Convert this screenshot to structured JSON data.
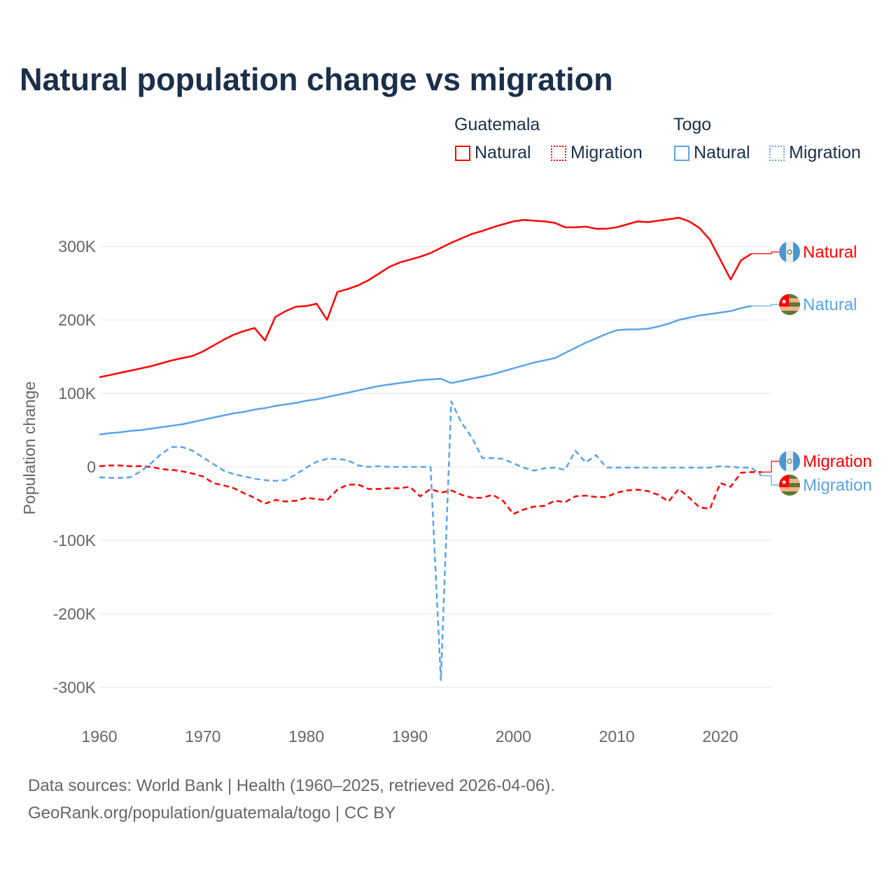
{
  "colors": {
    "guatemala": "#ff0000",
    "togo": "#5ba4ea",
    "title": "#1b2f4b"
  },
  "legend": {
    "groups": [
      {
        "name": "Guatemala",
        "items": [
          "Natural",
          "Migration"
        ]
      },
      {
        "name": "Togo",
        "items": [
          "Natural",
          "Migration"
        ]
      }
    ]
  },
  "footer": {
    "line1": "Data sources: World Bank | Health (1960–2025, retrieved 2026-04-06).",
    "line2": "GeoRank.org/population/guatemala/togo | CC BY"
  },
  "chart_data": {
    "type": "line",
    "title": "Natural population change vs migration",
    "xlabel": "",
    "ylabel": "Population change",
    "xlim": [
      1960,
      2025
    ],
    "ylim": [
      -330000,
      360000
    ],
    "xticks": [
      1960,
      1970,
      1980,
      1990,
      2000,
      2010,
      2020
    ],
    "yticks": [
      {
        "value": 300000,
        "label": "300K"
      },
      {
        "value": 200000,
        "label": "200K"
      },
      {
        "value": 100000,
        "label": "100K"
      },
      {
        "value": 0,
        "label": "0"
      },
      {
        "value": -100000,
        "label": "-100K"
      },
      {
        "value": -200000,
        "label": "-200K"
      },
      {
        "value": -300000,
        "label": "-300K"
      }
    ],
    "grid": true,
    "legend_position": "top-right",
    "series": [
      {
        "name": "Guatemala Natural",
        "country": "Guatemala",
        "label": "Natural",
        "color": "#ff0000",
        "dash": "solid",
        "start": 1960,
        "values_k": [
          122,
          125,
          128,
          131,
          134,
          137,
          141,
          145,
          148,
          151,
          157,
          165,
          173,
          180,
          185,
          189,
          172,
          204,
          212,
          218,
          219,
          222,
          200,
          238,
          242,
          247,
          254,
          263,
          272,
          278,
          282,
          286,
          291,
          298,
          305,
          311,
          317,
          321,
          326,
          330,
          334,
          336,
          335,
          334,
          332,
          326,
          326,
          327,
          324,
          324,
          326,
          330,
          334,
          333,
          335,
          337,
          339,
          334,
          325,
          309,
          282,
          255,
          281,
          290
        ]
      },
      {
        "name": "Guatemala Migration",
        "country": "Guatemala",
        "label": "Migration",
        "color": "#ff0000",
        "dash": "dashed",
        "start": 1960,
        "values_k": [
          1,
          2,
          2,
          1,
          1,
          0,
          -3,
          -4,
          -6,
          -9,
          -13,
          -22,
          -25,
          -29,
          -36,
          -42,
          -50,
          -45,
          -47,
          -46,
          -42,
          -44,
          -45,
          -31,
          -24,
          -24,
          -30,
          -30,
          -29,
          -29,
          -27,
          -40,
          -30,
          -35,
          -32,
          -38,
          -42,
          -42,
          -38,
          -46,
          -64,
          -58,
          -54,
          -53,
          -46,
          -48,
          -40,
          -39,
          -41,
          -41,
          -35,
          -32,
          -31,
          -33,
          -38,
          -47,
          -30,
          -42,
          -55,
          -57,
          -22,
          -27,
          -8,
          -7,
          -7
        ]
      },
      {
        "name": "Togo Natural",
        "country": "Togo",
        "label": "Natural",
        "color": "#5ba4ea",
        "dash": "solid",
        "start": 1960,
        "values_k": [
          44,
          46,
          47,
          49,
          50,
          52,
          54,
          56,
          58,
          61,
          64,
          67,
          70,
          73,
          75,
          78,
          80,
          83,
          85,
          87,
          90,
          92,
          95,
          98,
          101,
          104,
          107,
          110,
          112,
          114,
          116,
          118,
          119,
          120,
          114,
          117,
          120,
          123,
          126,
          130,
          134,
          138,
          142,
          145,
          148,
          155,
          162,
          169,
          175,
          181,
          186,
          187,
          187,
          188,
          191,
          195,
          200,
          203,
          206,
          208,
          210,
          212,
          216,
          219
        ]
      },
      {
        "name": "Togo Migration",
        "country": "Togo",
        "label": "Migration",
        "color": "#5ba4ea",
        "dash": "dashed",
        "start": 1960,
        "values_k": [
          -14,
          -15,
          -15,
          -14,
          -6,
          5,
          18,
          27,
          27,
          22,
          13,
          4,
          -5,
          -10,
          -13,
          -16,
          -18,
          -19,
          -18,
          -10,
          -1,
          7,
          11,
          11,
          9,
          2,
          0,
          1,
          0,
          0,
          0,
          0,
          0,
          -290,
          89,
          60,
          40,
          12,
          12,
          11,
          5,
          -1,
          -5,
          -2,
          -1,
          -4,
          22,
          6,
          16,
          -1,
          -1,
          -1,
          -1,
          -1,
          -1,
          -1,
          -1,
          -1,
          -1,
          -1,
          1,
          0,
          -1,
          -1,
          -12
        ]
      }
    ]
  }
}
